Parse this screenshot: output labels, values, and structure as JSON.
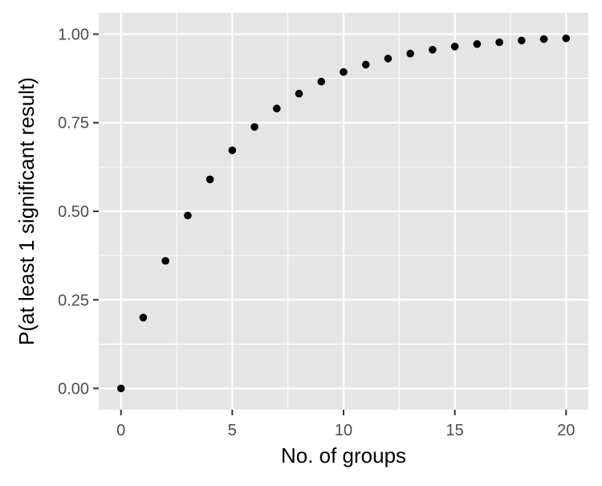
{
  "chart_data": {
    "type": "scatter",
    "title": "",
    "xlabel": "No. of groups",
    "ylabel": "P(at least 1 significant result)",
    "xlim": [
      -1,
      21
    ],
    "ylim": [
      -0.06,
      1.06
    ],
    "x_ticks": [
      0,
      5,
      10,
      15,
      20
    ],
    "x_tick_labels": [
      "0",
      "5",
      "10",
      "15",
      "20"
    ],
    "y_ticks": [
      0,
      0.25,
      0.5,
      0.75,
      1
    ],
    "y_tick_labels": [
      "0.00",
      "0.25",
      "0.50",
      "0.75",
      "1.00"
    ],
    "grid": true,
    "legend": "none",
    "colors": {
      "panel": "#e5e5e5",
      "grid": "#ffffff",
      "point": "#000000",
      "tick_text": "#4d4d4d",
      "axis_title": "#000000"
    },
    "series": [
      {
        "x": [
          0,
          1,
          2,
          3,
          4,
          5,
          6,
          7,
          8,
          9,
          10,
          11,
          12,
          13,
          14,
          15,
          16,
          17,
          18,
          19,
          20
        ],
        "y": [
          0,
          0.2,
          0.36,
          0.488,
          0.59,
          0.672,
          0.738,
          0.79,
          0.832,
          0.866,
          0.893,
          0.914,
          0.931,
          0.945,
          0.956,
          0.965,
          0.972,
          0.977,
          0.982,
          0.986,
          0.988
        ]
      }
    ]
  }
}
